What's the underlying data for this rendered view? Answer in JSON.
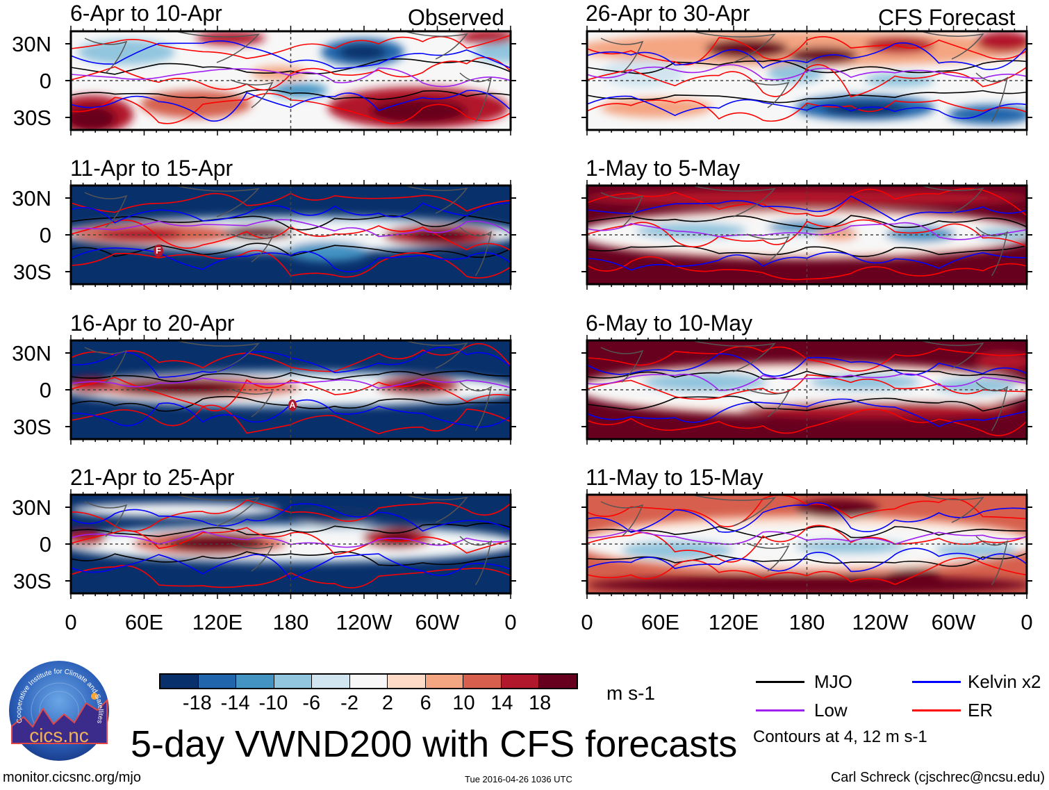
{
  "columns": {
    "observed": {
      "header": "Observed",
      "panels": [
        {
          "title": "6-Apr to 10-Apr"
        },
        {
          "title": "11-Apr to 15-Apr",
          "marker": "F"
        },
        {
          "title": "16-Apr to 20-Apr",
          "marker": "A"
        },
        {
          "title": "21-Apr to 25-Apr"
        }
      ]
    },
    "forecast": {
      "header": "CFS Forecast",
      "panels": [
        {
          "title": "26-Apr to 30-Apr"
        },
        {
          "title": "1-May to 5-May"
        },
        {
          "title": "6-May to 10-May"
        },
        {
          "title": "11-May to 15-May"
        }
      ]
    }
  },
  "axes": {
    "lat_labels": [
      "30N",
      "0",
      "30S"
    ],
    "lon_labels": [
      "0",
      "60E",
      "120E",
      "180",
      "120W",
      "60W",
      "0"
    ],
    "lat_range": [
      -40,
      40
    ],
    "lon_range": [
      0,
      360
    ]
  },
  "colorbar": {
    "colors": [
      "#08306b",
      "#2166ac",
      "#4393c3",
      "#92c5de",
      "#d1e5f0",
      "#f7f7f7",
      "#fddbc7",
      "#f4a582",
      "#d6604d",
      "#b2182b",
      "#67001f"
    ],
    "labels": [
      "-18",
      "-14",
      "-10",
      "-6",
      "-2",
      "2",
      "6",
      "10",
      "14",
      "18"
    ],
    "units": "m s-1"
  },
  "legend": {
    "items": [
      {
        "label": "MJO",
        "color": "#000000"
      },
      {
        "label": "Kelvin x2",
        "color": "#0000ff"
      },
      {
        "label": "Low",
        "color": "#a020f0"
      },
      {
        "label": "ER",
        "color": "#ff0000"
      }
    ],
    "note": "Contours at 4, 12 m s-1"
  },
  "title": "5-day VWND200 with CFS forecasts",
  "logo": {
    "text": "cics.nc",
    "arc_text": "Cooperative Institute for Climate and Satellites"
  },
  "footer": {
    "url": "monitor.cicsnc.org/mjo",
    "timestamp": "Tue 2016-04-26 1036 UTC",
    "author": "Carl Schreck (cjschrec@ncsu.edu)"
  }
}
